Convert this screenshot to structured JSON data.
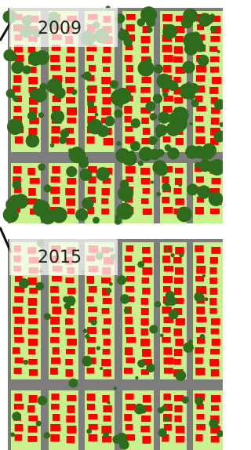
{
  "panels": [
    {
      "label": "2009"
    },
    {
      "label": "2015"
    }
  ]
}
